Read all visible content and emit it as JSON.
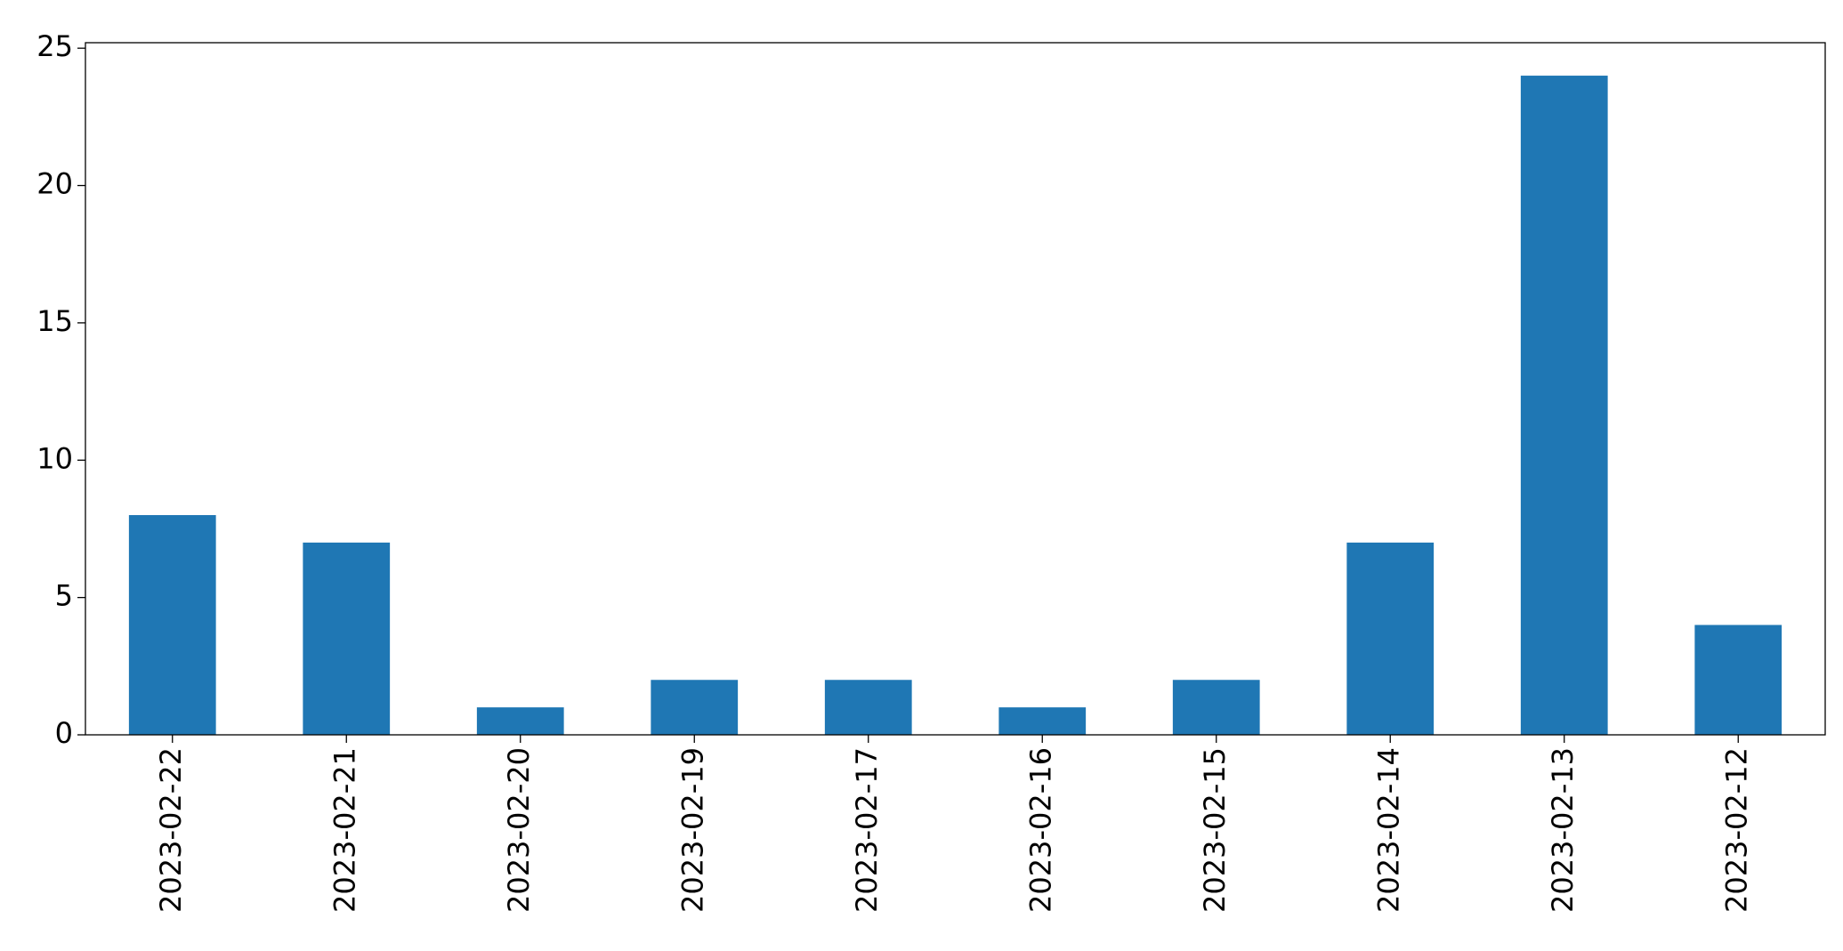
{
  "chart_data": {
    "type": "bar",
    "categories": [
      "2023-02-22",
      "2023-02-21",
      "2023-02-20",
      "2023-02-19",
      "2023-02-17",
      "2023-02-16",
      "2023-02-15",
      "2023-02-14",
      "2023-02-13",
      "2023-02-12"
    ],
    "values": [
      8,
      7,
      1,
      2,
      2,
      1,
      2,
      7,
      24,
      4
    ],
    "color": "#1f77b4",
    "ylim": [
      0,
      25.2
    ],
    "yticks": [
      0,
      5,
      10,
      15,
      20,
      25
    ],
    "grid": false
  }
}
